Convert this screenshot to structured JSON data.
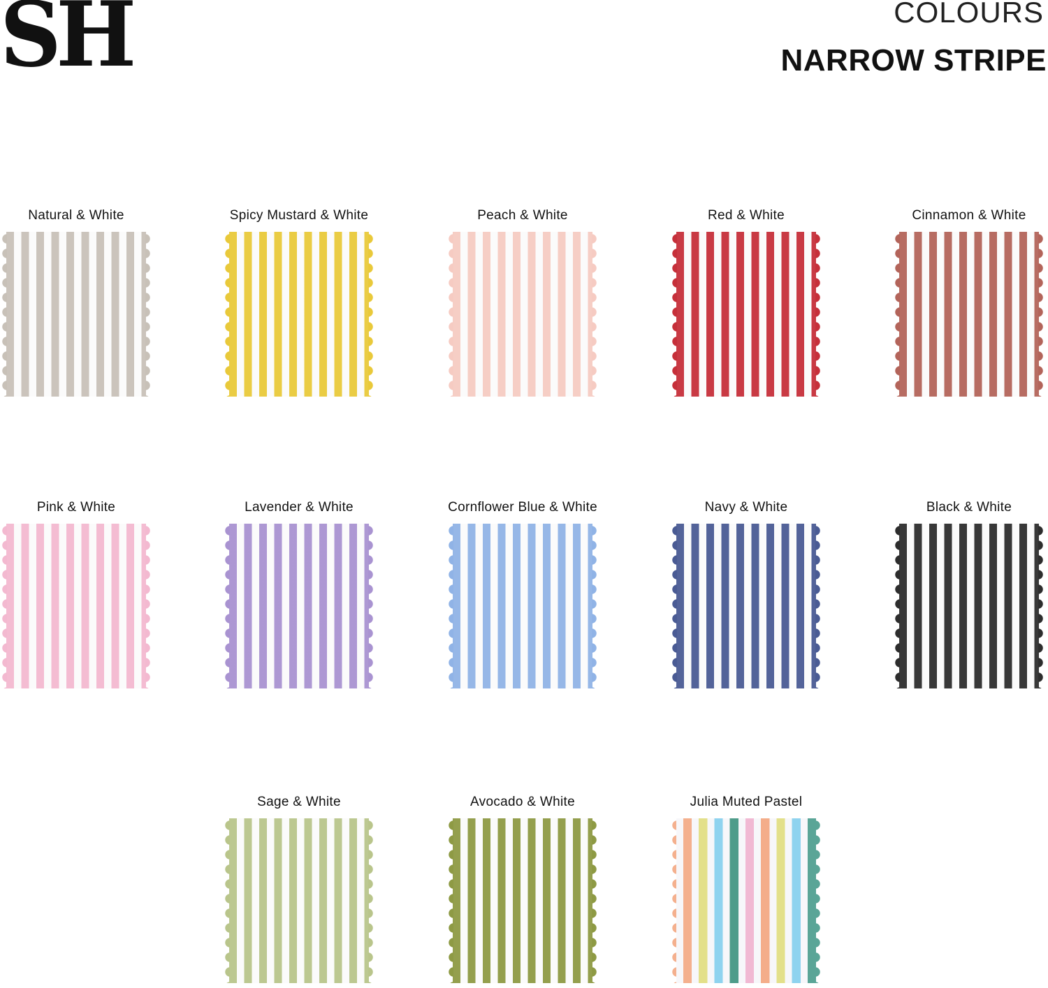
{
  "header": {
    "logo": "SH",
    "kicker": "COLOURS",
    "title": "NARROW STRIPE"
  },
  "swatches": [
    {
      "name": "Natural & White",
      "color": "#c8c1b8"
    },
    {
      "name": "Spicy Mustard & White",
      "color": "#e9c93a"
    },
    {
      "name": "Peach & White",
      "color": "#f6cbc2"
    },
    {
      "name": "Red & White",
      "color": "#c6303a"
    },
    {
      "name": "Cinnamon & White",
      "color": "#b3645a"
    },
    {
      "name": "Pink & White",
      "color": "#f3b9d0"
    },
    {
      "name": "Lavender & White",
      "color": "#a993d1"
    },
    {
      "name": "Cornflower Blue & White",
      "color": "#90b3e6"
    },
    {
      "name": "Navy & White",
      "color": "#4a5b94"
    },
    {
      "name": "Black & White",
      "color": "#2d2d2d"
    },
    {
      "name": "Sage & White",
      "color": "#b9c58b"
    },
    {
      "name": "Avocado & White",
      "color": "#8e9a44"
    },
    {
      "name": "Julia Muted Pastel",
      "colors": [
        "#f4b08e",
        "#e3e08a",
        "#8fd3ef",
        "#4e9c8a",
        "#f1b9d3",
        "#f4ad8a",
        "#e3e08a",
        "#8fd3ef",
        "#5aa597"
      ]
    }
  ]
}
